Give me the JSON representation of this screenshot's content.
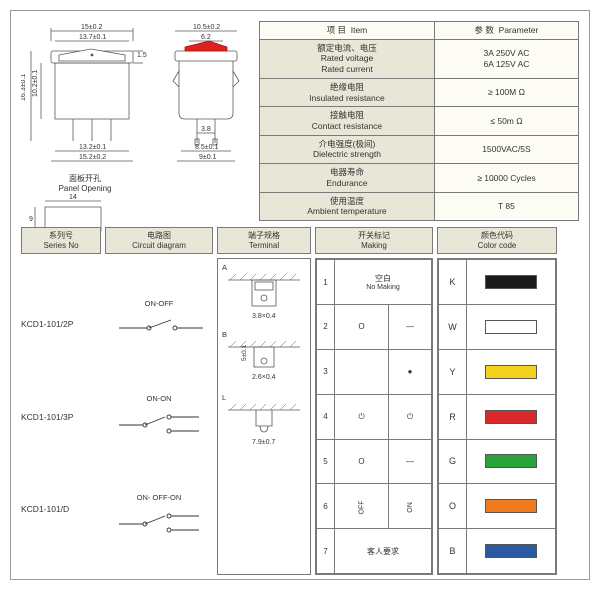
{
  "drawing1": {
    "dims": {
      "top_outer": "15±0.2",
      "top_inner": "13.7±0.1",
      "h_outer": "16.3±0.1",
      "h_inner": "10.2±0.1",
      "h_lip": "1.5",
      "bottom_inner": "13.2±0.1",
      "bottom_outer": "15.2±0.2"
    }
  },
  "drawing2": {
    "dims": {
      "top_outer": "10.5±0.2",
      "top_inner": "6.2",
      "pin_pitch": "3.8",
      "pin_span": "8.5±0.1",
      "bottom": "9±0.1"
    }
  },
  "panel": {
    "cn": "面板开孔",
    "en": "Panel Opening",
    "w": "14",
    "h": "9"
  },
  "params": {
    "hdr_item_cn": "项 目",
    "hdr_item_en": "Item",
    "hdr_val_cn": "参 数",
    "hdr_val_en": "Parameter",
    "rows": [
      {
        "cn": "额定电流、电压",
        "en": "Rated voltage\nRated current",
        "val": "3A 250V AC\n6A 125V AC"
      },
      {
        "cn": "绝缘电阻",
        "en": "Insulated resistance",
        "val": "≥ 100M Ω"
      },
      {
        "cn": "接触电阻",
        "en": "Contact resistance",
        "val": "≤ 50m Ω"
      },
      {
        "cn": "介电强度(极间)",
        "en": "Dielectric strength",
        "val": "1500VAC/5S"
      },
      {
        "cn": "电器寿命",
        "en": "Endurance",
        "val": "≥ 10000 Cycles"
      },
      {
        "cn": "使用温度",
        "en": "Ambient temperature",
        "val": "T 85"
      }
    ]
  },
  "cols": {
    "series": {
      "cn": "系列号",
      "en": "Series No"
    },
    "diag": {
      "cn": "电路图",
      "en": "Circuit diagram"
    },
    "term": {
      "cn": "端子规格",
      "en": "Terminal"
    },
    "mark": {
      "cn": "开关标记",
      "en": "Making"
    },
    "color": {
      "cn": "颜色代码",
      "en": "Color code"
    }
  },
  "series": [
    {
      "pn": "KCD1-101/2P",
      "fn": "ON-OFF",
      "poles": 2
    },
    {
      "pn": "KCD1-101/3P",
      "fn": "ON-ON",
      "poles": 3
    },
    {
      "pn": "KCD1-101/D",
      "fn": "ON- OFF-ON",
      "poles": 3
    }
  ],
  "terminals": {
    "A": {
      "label": "A",
      "dim": "3.8×0.4"
    },
    "B": {
      "label": "B",
      "dim": "2.6×0.4",
      "h": "5±0.1"
    },
    "L": {
      "label": "L",
      "dim": "7.9±0.7"
    }
  },
  "making": {
    "rows": [
      {
        "n": "1",
        "cn": "空白",
        "en": "No Making"
      },
      {
        "n": "2",
        "sym": "O",
        "sym2": "—"
      },
      {
        "n": "3",
        "sym": "",
        "sym2": "●"
      },
      {
        "n": "4",
        "sym": "⏻",
        "sym2": "⏻"
      },
      {
        "n": "5",
        "sym": "O",
        "sym2": "—"
      },
      {
        "n": "6",
        "sym": "OFF",
        "sym2": "ON",
        "rot": true
      },
      {
        "n": "7",
        "cn": "客人要求",
        "en": ""
      }
    ]
  },
  "colors": [
    {
      "code": "K",
      "hex": "#1a1a1a"
    },
    {
      "code": "W",
      "hex": "#ffffff"
    },
    {
      "code": "Y",
      "hex": "#f2d21e"
    },
    {
      "code": "R",
      "hex": "#d82a2a"
    },
    {
      "code": "G",
      "hex": "#2aa23a"
    },
    {
      "code": "O",
      "hex": "#f07a1e"
    },
    {
      "code": "B",
      "hex": "#2a5aa2"
    }
  ],
  "style": {
    "line": "#5a5a5a",
    "thin": "#888",
    "box_bg": "#fdfcf5",
    "hdr_bg": "#e8e6d6"
  }
}
